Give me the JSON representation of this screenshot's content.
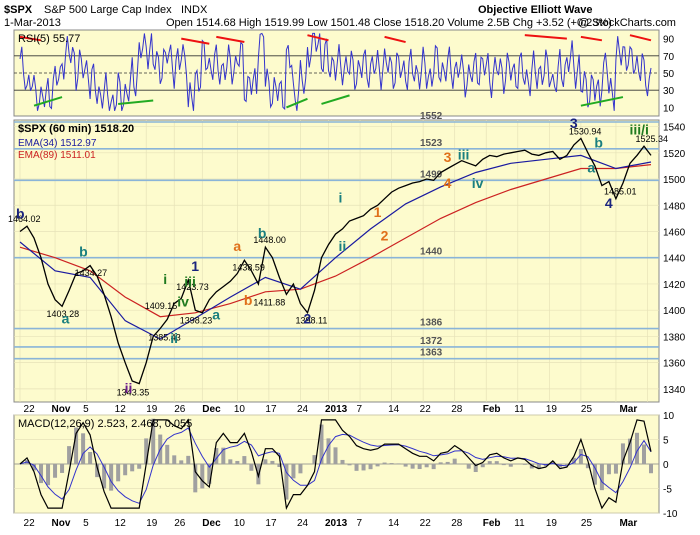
{
  "header": {
    "symbol": "$SPX",
    "name": "S&P 500 Large Cap Index",
    "exchange": "INDX",
    "date": "1-Mar-2013",
    "quote": "Open 1514.68  High 1519.99  Low 1501.48  Close 1518.20  Volume 2.5B  Chg +3.52 (+0.23%)",
    "change_arrow": "▲",
    "brand": "Objective Elliott Wave",
    "copyright": "@ StockCharts.com"
  },
  "colors": {
    "panel_bg": "#fdfbcd",
    "rsi_line": "#3333cc",
    "price": "#000000",
    "ema34": "#1a1aa0",
    "ema89": "#cc2222",
    "hline": "#8ab4d8",
    "macd_line": "#000000",
    "signal_line": "#3333cc",
    "histogram": "#a0a0a0",
    "wave_navy": "#1a237e",
    "wave_teal": "#1a7f7f",
    "wave_green": "#1f7a1f",
    "wave_orange": "#e0701a",
    "wave_purple": "#6a1a8a",
    "div_red": "#ee1111",
    "div_green": "#22aa22"
  },
  "chart_data": [
    {
      "type": "line",
      "title": "RSI(5) 55.77",
      "ylim": [
        0,
        100
      ],
      "y_ticks": [
        10,
        30,
        50,
        70,
        90
      ],
      "reference_lines": [
        30,
        50,
        70
      ],
      "last_value": 55.77
    },
    {
      "type": "line",
      "title": "$SPX (60 min) 1518.20",
      "ylim": [
        1330,
        1545
      ],
      "y_ticks": [
        1340,
        1360,
        1380,
        1400,
        1420,
        1440,
        1460,
        1480,
        1500,
        1520,
        1540
      ],
      "x_tick_labels": [
        "22",
        "Nov",
        "5",
        "12",
        "19",
        "26",
        "Dec",
        "10",
        "17",
        "24",
        "2013",
        "7",
        "14",
        "22",
        "28",
        "Feb",
        "11",
        "19",
        "25",
        "Mar"
      ],
      "legend": [
        {
          "name": "EMA(34) 1512.97",
          "color": "#1a1aa0"
        },
        {
          "name": "EMA(89) 1511.01",
          "color": "#cc2222"
        }
      ],
      "horizontal_levels": [
        1552,
        1523,
        1499,
        1440,
        1386,
        1372,
        1363
      ],
      "price_labels": [
        {
          "x": 0.0,
          "y": 1464.02,
          "label": "1464.02"
        },
        {
          "x": 9.5,
          "y": 1434.27,
          "label": "1434.27"
        },
        {
          "x": 5.5,
          "y": 1403.28,
          "label": "1403.28"
        },
        {
          "x": 15.5,
          "y": 1343.35,
          "label": "1343.35"
        },
        {
          "x": 20.0,
          "y": 1385.43,
          "label": "1385.43"
        },
        {
          "x": 19.5,
          "y": 1409.15,
          "label": "1409.15"
        },
        {
          "x": 24.0,
          "y": 1423.73,
          "label": "1423.73"
        },
        {
          "x": 24.5,
          "y": 1398.23,
          "label": "1398.23"
        },
        {
          "x": 32.0,
          "y": 1438.59,
          "label": "1438.59"
        },
        {
          "x": 35.0,
          "y": 1448.0,
          "label": "1448.00"
        },
        {
          "x": 35.0,
          "y": 1411.88,
          "label": "1411.88"
        },
        {
          "x": 41.0,
          "y": 1398.11,
          "label": "1398.11"
        },
        {
          "x": 80.0,
          "y": 1530.94,
          "label": "1530.94"
        },
        {
          "x": 85.0,
          "y": 1485.01,
          "label": "1485.01"
        },
        {
          "x": 89.5,
          "y": 1525.34,
          "label": "1525.34"
        }
      ],
      "series": [
        {
          "name": "$SPX",
          "x": [
            0,
            1,
            2,
            3,
            4,
            5,
            6,
            7,
            8,
            9,
            10,
            11,
            12,
            13,
            14,
            15,
            16,
            17,
            18,
            19,
            20,
            21,
            22,
            23,
            24,
            25,
            26,
            27,
            28,
            29,
            30,
            31,
            32,
            33,
            34,
            35,
            36,
            37,
            38,
            39,
            40,
            41,
            42,
            43,
            44,
            45,
            46,
            47,
            48,
            49,
            50,
            51,
            52,
            53,
            54,
            55,
            56,
            57,
            58,
            59,
            60,
            61,
            62,
            63,
            64,
            65,
            66,
            67,
            68,
            69,
            70,
            71,
            72,
            73,
            74,
            75,
            76,
            77,
            78,
            79,
            80,
            81,
            82,
            83,
            84,
            85,
            86,
            87,
            88,
            89,
            90
          ],
          "values": [
            1460,
            1464,
            1455,
            1440,
            1420,
            1408,
            1403,
            1415,
            1428,
            1430,
            1434,
            1426,
            1412,
            1395,
            1375,
            1360,
            1346,
            1344,
            1360,
            1380,
            1386,
            1393,
            1405,
            1409,
            1423,
            1400,
            1398,
            1408,
            1414,
            1418,
            1422,
            1428,
            1438,
            1430,
            1420,
            1448,
            1440,
            1425,
            1412,
            1420,
            1405,
            1398,
            1415,
            1440,
            1450,
            1458,
            1462,
            1468,
            1470,
            1472,
            1477,
            1480,
            1485,
            1490,
            1493,
            1495,
            1497,
            1498,
            1500,
            1499,
            1505,
            1508,
            1511,
            1514,
            1512,
            1510,
            1515,
            1518,
            1517,
            1519,
            1520,
            1521,
            1522,
            1519,
            1518,
            1520,
            1521,
            1515,
            1518,
            1526,
            1531,
            1520,
            1510,
            1495,
            1498,
            1485,
            1497,
            1512,
            1518,
            1525,
            1518
          ]
        },
        {
          "name": "EMA(34) 1512.97",
          "x": [
            0,
            5,
            10,
            15,
            20,
            25,
            30,
            35,
            40,
            45,
            50,
            55,
            60,
            65,
            70,
            75,
            80,
            85,
            90
          ],
          "values": [
            1452,
            1430,
            1425,
            1392,
            1378,
            1394,
            1410,
            1425,
            1416,
            1440,
            1462,
            1481,
            1494,
            1505,
            1512,
            1515,
            1518,
            1508,
            1513
          ]
        },
        {
          "name": "EMA(89) 1511.01",
          "x": [
            0,
            5,
            10,
            15,
            20,
            25,
            30,
            35,
            40,
            45,
            50,
            55,
            60,
            65,
            70,
            75,
            80,
            85,
            90
          ],
          "values": [
            1448,
            1440,
            1430,
            1410,
            1395,
            1398,
            1405,
            1414,
            1416,
            1426,
            1440,
            1455,
            1470,
            1482,
            1492,
            1500,
            1508,
            1508,
            1511
          ]
        }
      ],
      "wave_labels": [
        {
          "x": 0.0,
          "y": 1470,
          "text": "b",
          "color": "#1a237e"
        },
        {
          "x": 9.0,
          "y": 1441,
          "text": "b",
          "color": "#1a7f7f"
        },
        {
          "x": 6.5,
          "y": 1390,
          "text": "a",
          "color": "#1a7f7f"
        },
        {
          "x": 15.5,
          "y": 1337,
          "text": "ii",
          "color": "#6a1a8a"
        },
        {
          "x": 22.0,
          "y": 1375,
          "text": "ii",
          "color": "#1a7f7f"
        },
        {
          "x": 21.0,
          "y": 1420,
          "text": "i",
          "color": "#1f7a1f"
        },
        {
          "x": 24.0,
          "y": 1418,
          "text": "iii",
          "color": "#1f7a1f"
        },
        {
          "x": 23.0,
          "y": 1403,
          "text": "iv",
          "color": "#1f7a1f"
        },
        {
          "x": 25.0,
          "y": 1430,
          "text": "1",
          "color": "#1a237e"
        },
        {
          "x": 28.0,
          "y": 1393,
          "text": "a",
          "color": "#1a7f7f"
        },
        {
          "x": 31.0,
          "y": 1445,
          "text": "a",
          "color": "#e0701a"
        },
        {
          "x": 34.5,
          "y": 1455,
          "text": "b",
          "color": "#1a7f7f"
        },
        {
          "x": 32.5,
          "y": 1404,
          "text": "b",
          "color": "#e0701a"
        },
        {
          "x": 41.0,
          "y": 1390,
          "text": "2",
          "color": "#1a237e"
        },
        {
          "x": 46.0,
          "y": 1482,
          "text": "i",
          "color": "#1a7f7f"
        },
        {
          "x": 46.0,
          "y": 1445,
          "text": "ii",
          "color": "#1a7f7f"
        },
        {
          "x": 51.0,
          "y": 1471,
          "text": "1",
          "color": "#e0701a"
        },
        {
          "x": 52.0,
          "y": 1453,
          "text": "2",
          "color": "#e0701a"
        },
        {
          "x": 61.0,
          "y": 1513,
          "text": "3",
          "color": "#e0701a"
        },
        {
          "x": 63.0,
          "y": 1515,
          "text": "iii",
          "color": "#1a7f7f"
        },
        {
          "x": 61.0,
          "y": 1493,
          "text": "4",
          "color": "#e0701a"
        },
        {
          "x": 65.0,
          "y": 1493,
          "text": "iv",
          "color": "#1a7f7f"
        },
        {
          "x": 79.0,
          "y": 1539,
          "text": "3",
          "color": "#1a237e"
        },
        {
          "x": 82.5,
          "y": 1524,
          "text": "b",
          "color": "#1a7f7f"
        },
        {
          "x": 81.5,
          "y": 1505,
          "text": "a",
          "color": "#1a7f7f"
        },
        {
          "x": 84.0,
          "y": 1478,
          "text": "4",
          "color": "#1a237e"
        },
        {
          "x": 87.5,
          "y": 1534,
          "text": "iii/i",
          "color": "#1f7a1f"
        }
      ]
    },
    {
      "type": "line",
      "title": "MACD(12,26,9) 2.523, 2.468, 0.055",
      "ylim": [
        -10,
        10
      ],
      "y_ticks": [
        -10,
        -5,
        0,
        5,
        10
      ],
      "macd": 2.523,
      "signal": 2.468,
      "histogram": 0.055
    }
  ]
}
